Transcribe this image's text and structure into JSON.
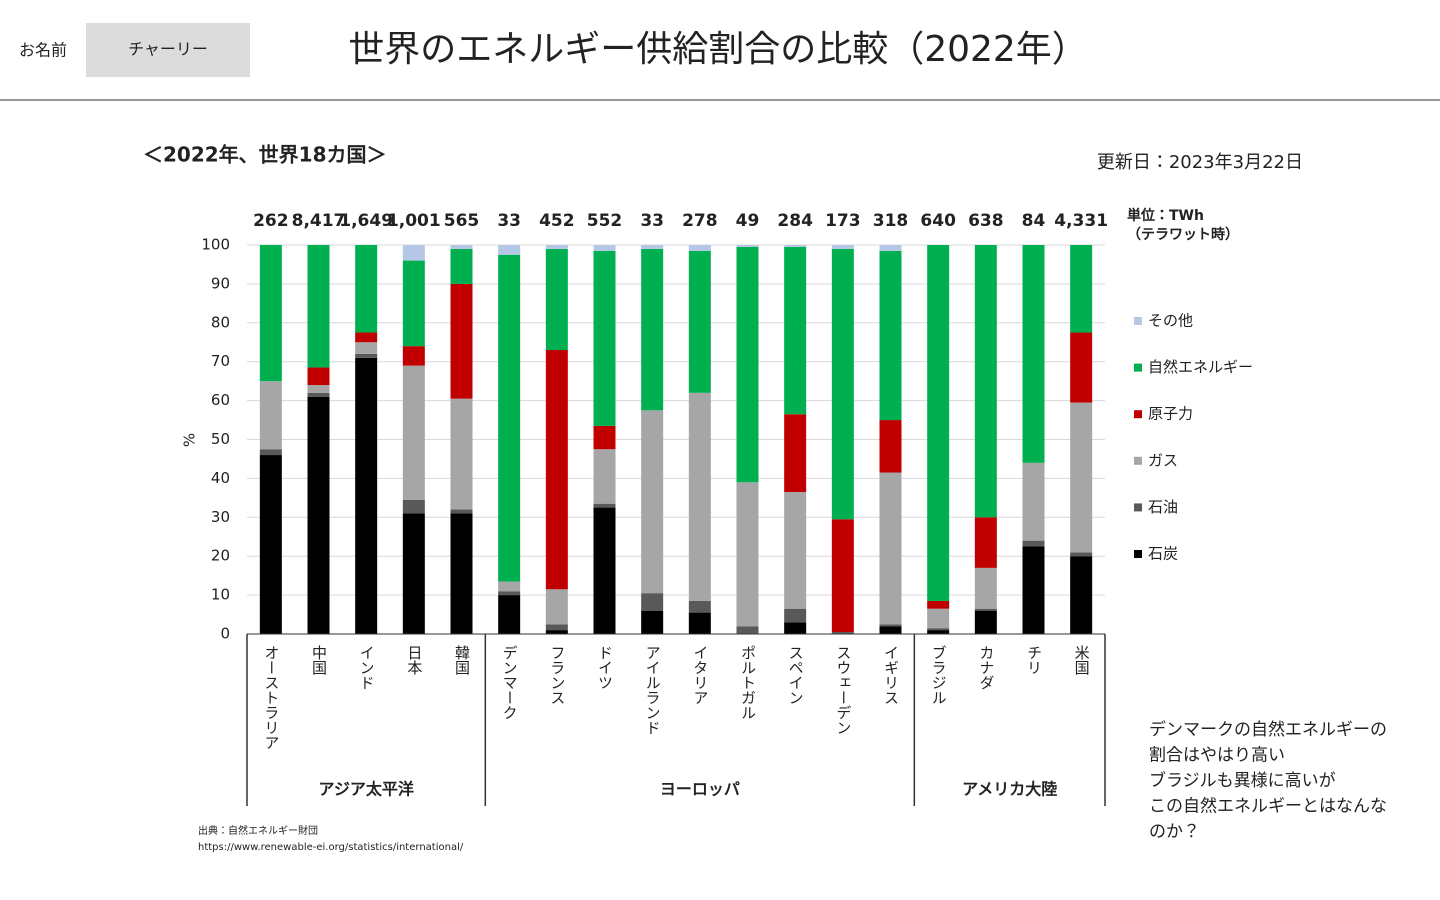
{
  "header": {
    "name_label": "お名前",
    "name_value": "チャーリー",
    "title": "世界のエネルギー供給割合の比較（2022年）"
  },
  "chart_data": {
    "type": "stacked_bar",
    "title": "＜2022年、世界18カ国＞",
    "updated": "更新日：2023年3月22日",
    "unit_label": "単位：TWh",
    "unit_note": "（テラワット時）",
    "ylabel": "%",
    "categories": [
      "オーストラリア",
      "中国",
      "インド",
      "日本",
      "韓国",
      "デンマーク",
      "フランス",
      "ドイツ",
      "アイルランド",
      "イタリア",
      "ポルトガル",
      "スペイン",
      "スウェーデン",
      "イギリス",
      "ブラジル",
      "カナダ",
      "チリ",
      "米国"
    ],
    "groups": [
      {
        "name": "アジア太平洋",
        "size": 5
      },
      {
        "name": "ヨーロッパ",
        "size": 9
      },
      {
        "name": "アメリカ大陸",
        "size": 4
      }
    ],
    "totals": {
      "values": [
        262,
        8417,
        1649,
        1001,
        565,
        33,
        452,
        552,
        33,
        278,
        49,
        284,
        173,
        318,
        640,
        638,
        84,
        4331
      ],
      "value_labels": [
        "262",
        "8,417",
        "1,649",
        "1,001",
        "565",
        "33",
        "452",
        "552",
        "33",
        "278",
        "49",
        "284",
        "173",
        "318",
        "640",
        "638",
        "84",
        "4,331"
      ]
    },
    "series": [
      {
        "name": "石炭",
        "color": "#000000",
        "values": [
          46,
          61,
          71,
          31,
          31,
          10,
          1,
          32.5,
          6,
          5.5,
          0,
          3,
          0,
          2,
          1,
          6,
          22.5,
          20
        ]
      },
      {
        "name": "石油",
        "color": "#595959",
        "values": [
          1.5,
          1,
          1,
          3.5,
          1,
          1,
          1.5,
          1,
          4.5,
          3,
          2,
          3.5,
          0.5,
          0.5,
          0.5,
          0.5,
          1.5,
          1
        ]
      },
      {
        "name": "ガス",
        "color": "#a6a6a6",
        "values": [
          17.5,
          2,
          3,
          34.5,
          28.5,
          2.5,
          9,
          14,
          47,
          53.5,
          37,
          30,
          0,
          39,
          5,
          10.5,
          20,
          38.5
        ]
      },
      {
        "name": "原子力",
        "color": "#c00000",
        "values": [
          0,
          4.5,
          2.5,
          5,
          29.5,
          0,
          61.5,
          6,
          0,
          0,
          0,
          20,
          29,
          13.5,
          2,
          13,
          0,
          18
        ]
      },
      {
        "name": "自然エネルギー",
        "color": "#00b050",
        "values": [
          35,
          31.5,
          22.5,
          22,
          9,
          84,
          26,
          45,
          41.5,
          36.5,
          60.5,
          43,
          69.5,
          43.5,
          91.5,
          70,
          56,
          22.5
        ]
      },
      {
        "name": "その他",
        "color": "#b4c7e7",
        "values": [
          0,
          0,
          0,
          4,
          1,
          2.5,
          1,
          1.5,
          1,
          1.5,
          0.5,
          0.5,
          1,
          1.5,
          0,
          0,
          0,
          0
        ]
      }
    ],
    "ylim": [
      0,
      100
    ],
    "yticks": [
      0,
      10,
      20,
      30,
      40,
      50,
      60,
      70,
      80,
      90,
      100
    ],
    "grid": true,
    "source": "出典：自然エネルギー財団",
    "source_url": "https://www.renewable-ei.org/statistics/international/"
  },
  "comment": [
    "デンマークの自然エネルギーの",
    "割合はやはり高い",
    "ブラジルも異様に高いが",
    "この自然エネルギーとはなんな",
    "のか？"
  ]
}
